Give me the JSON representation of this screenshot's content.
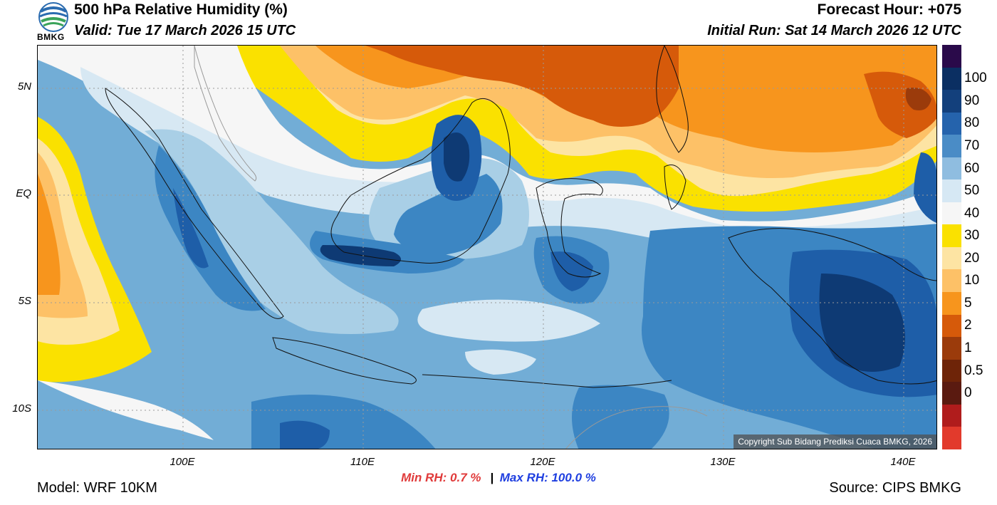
{
  "header": {
    "title": "500 hPa Relative Humidity (%)",
    "valid": "Valid: Tue 17 March 2026 15 UTC",
    "forecast_hour": "Forecast Hour: +075",
    "initial_run": "Initial Run: Sat 14 March 2026 12 UTC",
    "logo_text": "BMKG"
  },
  "map": {
    "lat_labels": [
      "5N",
      "EQ",
      "5S",
      "10S"
    ],
    "lon_labels": [
      "100E",
      "110E",
      "120E",
      "130E",
      "140E"
    ],
    "copyright": "Copyright Sub Bidang Prediksi Cuaca BMKG, 2026",
    "colors": {
      "very_dry": "#8b3a0c",
      "dry": "#c84f0a",
      "orange": "#f7951d",
      "light_orange": "#fdc167",
      "tan": "#fde4a3",
      "yellow": "#fae100",
      "white": "#f6f6f6",
      "pale_blue": "#d7e8f3",
      "light_blue": "#a9cfe6",
      "mid_blue": "#72add6",
      "blue": "#3c86c3",
      "dark_blue": "#1e5ea8",
      "navy": "#0e3a74"
    }
  },
  "colorbar": {
    "labels": [
      "100",
      "90",
      "80",
      "70",
      "60",
      "50",
      "40",
      "30",
      "20",
      "10",
      "5",
      "2",
      "1",
      "0.5",
      "0"
    ],
    "colors": [
      "#2a0a4a",
      "#0b2f62",
      "#13407c",
      "#2563ac",
      "#4a8cc6",
      "#8fbde0",
      "#d6e8f4",
      "#f6f6f6",
      "#fae100",
      "#fde4a3",
      "#fdc167",
      "#f7951d",
      "#d65a0a",
      "#9b3b0b",
      "#6e2408",
      "#5a1a10",
      "#b01c1c",
      "#e23a2c"
    ]
  },
  "stats": {
    "min_label": "Min RH:   0.7 %",
    "separator": "|",
    "max_label": "Max RH: 100.0 %"
  },
  "footer": {
    "model": "Model: WRF 10KM",
    "source": "Source: CIPS BMKG"
  }
}
